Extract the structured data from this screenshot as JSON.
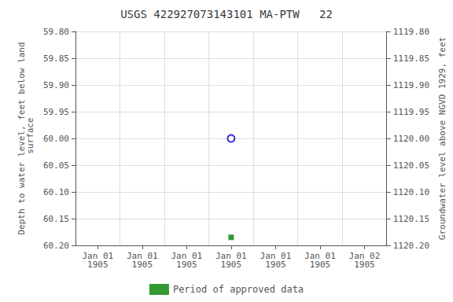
{
  "chart_data": {
    "type": "scatter",
    "title": "USGS 422927073143101 MA-PTW   22",
    "ylabel": "Depth to water level, feet below land\n surface",
    "y2label": "Groundwater level above NGVD 1929, feet",
    "categories": [
      "Jan 01\n1905",
      "Jan 01\n1905",
      "Jan 01\n1905",
      "Jan 01\n1905",
      "Jan 01\n1905",
      "Jan 01\n1905",
      "Jan 02\n1905"
    ],
    "series": [
      {
        "color": "#0000cc",
        "marker": "open_circle",
        "values": [
          null,
          null,
          null,
          60.0,
          null,
          null,
          null
        ]
      },
      {
        "name": "Period of approved data",
        "color": "#008000",
        "marker": "square",
        "values": [
          null,
          null,
          null,
          60.185,
          null,
          null,
          null
        ]
      }
    ],
    "ylim": [
      60.2,
      59.8
    ],
    "yticks": [
      {
        "value": 59.8,
        "label": "59.80"
      },
      59.85,
      {
        "value": 59.9,
        "label": "59.90"
      },
      59.95,
      {
        "value": 60.0,
        "label": "60.00"
      },
      60.05,
      {
        "value": 60.1,
        "label": "60.10"
      },
      60.15,
      {
        "value": 60.2,
        "label": "60.20"
      }
    ],
    "y2lim": [
      1120.2,
      1119.8
    ],
    "y2ticks": [
      {
        "value": 1120.2,
        "label": "1120.20"
      },
      1120.15,
      {
        "value": 1120.1,
        "label": "1120.10"
      },
      1120.05,
      {
        "value": 1120.0,
        "label": "1120.00"
      },
      1119.95,
      {
        "value": 1119.9,
        "label": "1119.90"
      },
      1119.85,
      {
        "value": 1119.8,
        "label": "1119.80"
      }
    ],
    "grid": true,
    "legend": "bottom"
  }
}
